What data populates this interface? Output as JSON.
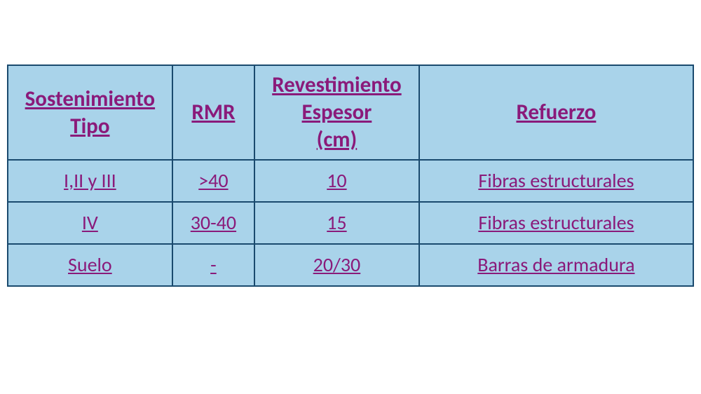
{
  "table": {
    "columns": [
      {
        "label_lines": [
          "Sostenimiento",
          "Tipo"
        ]
      },
      {
        "label_lines": [
          "RMR"
        ]
      },
      {
        "label_lines": [
          "Revestimiento",
          "Espesor",
          "(cm)"
        ]
      },
      {
        "label_lines": [
          "Refuerzo"
        ]
      }
    ],
    "rows": [
      {
        "tipo": "I,II y III",
        "rmr": ">40",
        "espesor": "10",
        "refuerzo": "Fibras estructurales"
      },
      {
        "tipo": "IV",
        "rmr": "30-40",
        "espesor": "15",
        "refuerzo": "Fibras estructurales"
      },
      {
        "tipo": "Suelo",
        "rmr": "-",
        "espesor": "20/30",
        "refuerzo": "Barras de armadura"
      }
    ],
    "style": {
      "border_color": "#1a4a6e",
      "cell_bg": "#a9d3ea",
      "text_color": "#8a1a7a",
      "header_fontsize": 31,
      "body_fontsize": 28,
      "underline": true,
      "col_widths_pct": [
        24,
        12,
        24,
        40
      ]
    }
  }
}
